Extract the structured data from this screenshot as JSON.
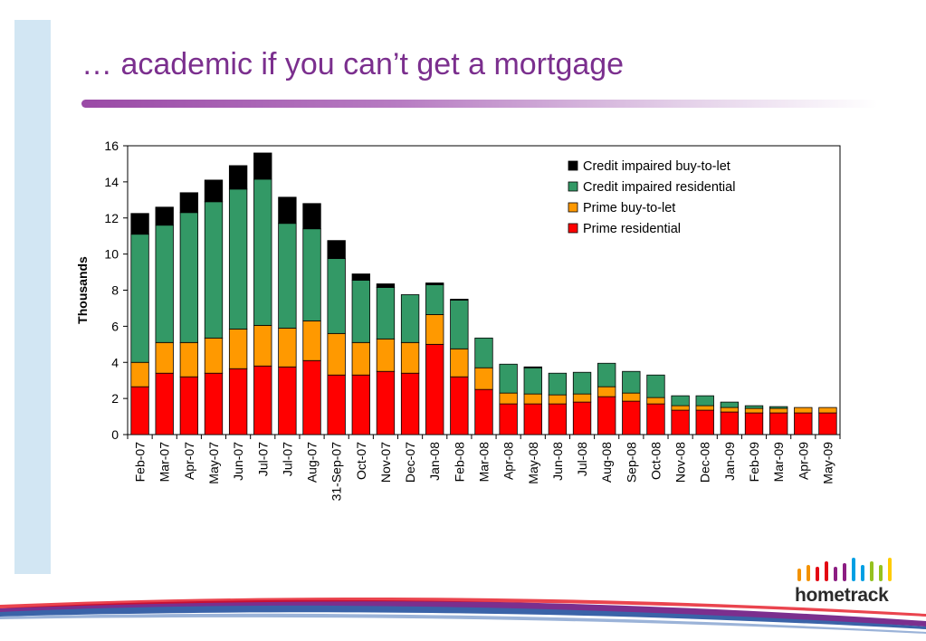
{
  "slide": {
    "title": "… academic if you can’t get a mortgage"
  },
  "logo": {
    "text": "hometrack",
    "bar_colors": [
      "#f39200",
      "#f39200",
      "#e30613",
      "#e30613",
      "#8c1d82",
      "#8c1d82",
      "#009fe3",
      "#009fe3",
      "#95c11f",
      "#95c11f",
      "#ffcc00"
    ]
  },
  "chart_data": {
    "type": "bar",
    "stacked": true,
    "ylabel": "Thousands",
    "ylim": [
      0,
      16
    ],
    "yticks": [
      0,
      2,
      4,
      6,
      8,
      10,
      12,
      14,
      16
    ],
    "grid": false,
    "legend_position": "top-right",
    "categories": [
      "Feb-07",
      "Mar-07",
      "Apr-07",
      "May-07",
      "Jun-07",
      "Jul-07",
      "Jul-07",
      "Aug-07",
      "31-Sep-07",
      "Oct-07",
      "Nov-07",
      "Dec-07",
      "Jan-08",
      "Feb-08",
      "Mar-08",
      "Apr-08",
      "May-08",
      "Jun-08",
      "Jul-08",
      "Aug-08",
      "Sep-08",
      "Oct-08",
      "Nov-08",
      "Dec-08",
      "Jan-09",
      "Feb-09",
      "Mar-09",
      "Apr-09",
      "May-09"
    ],
    "series": [
      {
        "name": "Prime residential",
        "color": "#ff0000",
        "values": [
          2.65,
          3.4,
          3.2,
          3.4,
          3.65,
          3.8,
          3.75,
          4.1,
          3.3,
          3.3,
          3.5,
          3.4,
          5.0,
          3.2,
          2.5,
          1.7,
          1.7,
          1.7,
          1.8,
          2.1,
          1.85,
          1.7,
          1.35,
          1.35,
          1.25,
          1.2,
          1.2,
          1.2,
          1.2
        ]
      },
      {
        "name": "Prime buy-to-let",
        "color": "#ff9900",
        "values": [
          1.35,
          1.7,
          1.9,
          1.95,
          2.2,
          2.25,
          2.15,
          2.2,
          2.3,
          1.8,
          1.8,
          1.7,
          1.65,
          1.55,
          1.2,
          0.6,
          0.55,
          0.5,
          0.45,
          0.55,
          0.45,
          0.35,
          0.25,
          0.25,
          0.25,
          0.25,
          0.25,
          0.3,
          0.3
        ]
      },
      {
        "name": "Credit impaired residential",
        "color": "#339966",
        "values": [
          7.1,
          6.5,
          7.2,
          7.55,
          7.75,
          8.1,
          5.8,
          5.1,
          4.15,
          3.45,
          2.85,
          2.65,
          1.65,
          2.7,
          1.65,
          1.6,
          1.45,
          1.2,
          1.2,
          1.3,
          1.2,
          1.25,
          0.55,
          0.55,
          0.3,
          0.15,
          0.1,
          0.0,
          0.0
        ]
      },
      {
        "name": "Credit impaired buy-to-let",
        "color": "#000000",
        "values": [
          1.15,
          1.0,
          1.1,
          1.2,
          1.3,
          1.45,
          1.45,
          1.4,
          1.0,
          0.35,
          0.2,
          0.0,
          0.1,
          0.05,
          0.0,
          0.0,
          0.05,
          0.0,
          0.0,
          0.0,
          0.0,
          0.0,
          0.0,
          0.0,
          0.0,
          0.0,
          0.0,
          0.0,
          0.0
        ]
      }
    ],
    "legend_order": [
      "Credit impaired buy-to-let",
      "Credit impaired residential",
      "Prime buy-to-let",
      "Prime residential"
    ]
  }
}
